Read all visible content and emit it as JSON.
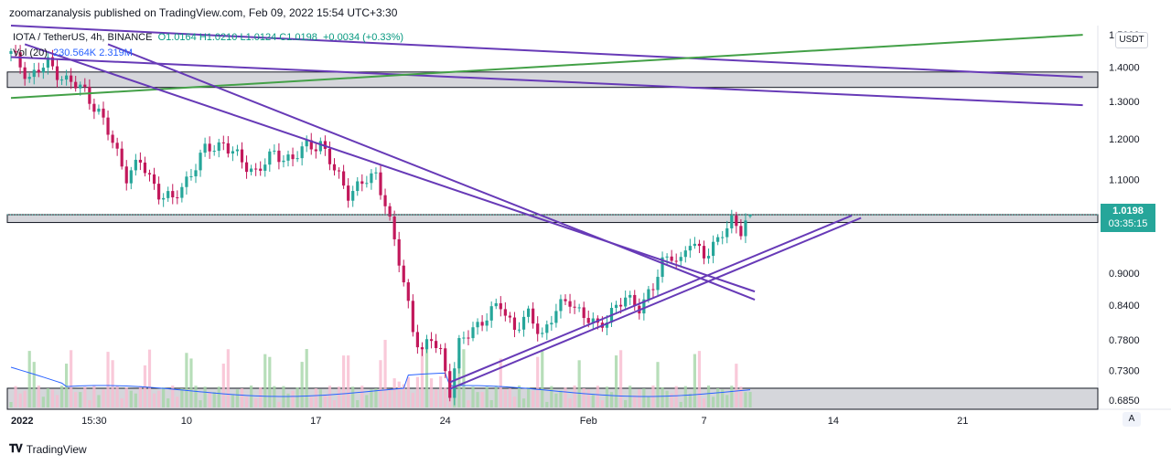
{
  "header": {
    "published": "zoomarzanalysis published on TradingView.com, Feb 09, 2022 15:54 UTC+3:30"
  },
  "legend": {
    "symbol": "IOTA / TetherUS, 4h, BINANCE",
    "ohlc": "O1.0164  H1.0210  L1.0124  C1.0198",
    "change": "+0.0034 (+0.33%)",
    "vol_label": "Vol (20)",
    "vol_values": "230.564K  2.319M"
  },
  "price_axis": {
    "currency": "USDT",
    "last_price": "1.0198",
    "countdown": "03:35:15"
  },
  "footer": {
    "brand": "TradingView"
  },
  "buttons": {
    "auto": "A"
  },
  "chart_data": {
    "type": "candlestick",
    "symbol": "IOTA / TetherUS",
    "interval": "4h",
    "exchange": "BINANCE",
    "scale": "log",
    "y_ticks": [
      "1.5000",
      "1.4000",
      "1.3000",
      "1.2000",
      "1.1000",
      "0.9000",
      "0.8400",
      "0.7800",
      "0.7300",
      "0.6850"
    ],
    "x_ticks": [
      "2022",
      "15:30",
      "10",
      "17",
      "24",
      "Feb",
      "7",
      "14",
      "21"
    ],
    "ylim": [
      0.672,
      1.53
    ],
    "last": {
      "open": 1.0164,
      "high": 1.021,
      "low": 1.0124,
      "close": 1.0198
    },
    "price_path": [
      [
        0,
        1.44
      ],
      [
        4,
        1.37
      ],
      [
        8,
        1.41
      ],
      [
        12,
        1.36
      ],
      [
        16,
        1.33
      ],
      [
        19,
        1.27
      ],
      [
        22,
        1.19
      ],
      [
        25,
        1.11
      ],
      [
        28,
        1.14
      ],
      [
        32,
        1.07
      ],
      [
        35,
        1.05
      ],
      [
        38,
        1.1
      ],
      [
        42,
        1.17
      ],
      [
        46,
        1.19
      ],
      [
        50,
        1.14
      ],
      [
        53,
        1.12
      ],
      [
        57,
        1.16
      ],
      [
        61,
        1.15
      ],
      [
        64,
        1.18
      ],
      [
        67,
        1.19
      ],
      [
        70,
        1.12
      ],
      [
        73,
        1.07
      ],
      [
        76,
        1.09
      ],
      [
        79,
        1.11
      ],
      [
        81,
        1.05
      ],
      [
        83,
        0.96
      ],
      [
        85,
        0.88
      ],
      [
        87,
        0.8
      ],
      [
        89,
        0.76
      ],
      [
        91,
        0.78
      ],
      [
        93,
        0.76
      ],
      [
        95,
        0.7
      ],
      [
        97,
        0.77
      ],
      [
        100,
        0.8
      ],
      [
        103,
        0.82
      ],
      [
        106,
        0.84
      ],
      [
        109,
        0.8
      ],
      [
        112,
        0.82
      ],
      [
        115,
        0.79
      ],
      [
        118,
        0.83
      ],
      [
        121,
        0.85
      ],
      [
        124,
        0.82
      ],
      [
        127,
        0.8
      ],
      [
        130,
        0.83
      ],
      [
        133,
        0.85
      ],
      [
        136,
        0.84
      ],
      [
        139,
        0.87
      ],
      [
        141,
        0.92
      ],
      [
        143,
        0.94
      ],
      [
        145,
        0.92
      ],
      [
        147,
        0.96
      ],
      [
        150,
        0.94
      ],
      [
        153,
        0.96
      ],
      [
        156,
        1.01
      ],
      [
        158,
        0.99
      ],
      [
        160,
        1.0198
      ]
    ],
    "zones": [
      {
        "from": 1.34,
        "to": 1.385,
        "color": "#b2b5be"
      },
      {
        "from": 1.003,
        "to": 1.02,
        "color": "#b2b5be"
      },
      {
        "from": 0.672,
        "to": 0.703,
        "color": "#b2b5be"
      }
    ],
    "lines": [
      {
        "color": "#673ab7",
        "points": [
          [
            0,
            1.53
          ],
          [
            232,
            1.37
          ]
        ]
      },
      {
        "color": "#673ab7",
        "points": [
          [
            0,
            1.43
          ],
          [
            232,
            1.29
          ]
        ]
      },
      {
        "color": "#43a047",
        "points": [
          [
            0,
            1.31
          ],
          [
            232,
            1.5
          ]
        ]
      },
      {
        "color": "#673ab7",
        "points": [
          [
            3,
            1.47
          ],
          [
            161,
            0.865
          ]
        ]
      },
      {
        "color": "#673ab7",
        "points": [
          [
            21,
            1.47
          ],
          [
            161,
            0.85
          ]
        ]
      },
      {
        "color": "#673ab7",
        "points": [
          [
            95,
            0.712
          ],
          [
            182,
            1.018
          ]
        ]
      },
      {
        "color": "#673ab7",
        "points": [
          [
            95,
            0.702
          ],
          [
            184,
            1.013
          ]
        ]
      }
    ],
    "volume_ma_color": "#2962ff",
    "up_color": "#26a69a",
    "down_color": "#c2185b"
  }
}
